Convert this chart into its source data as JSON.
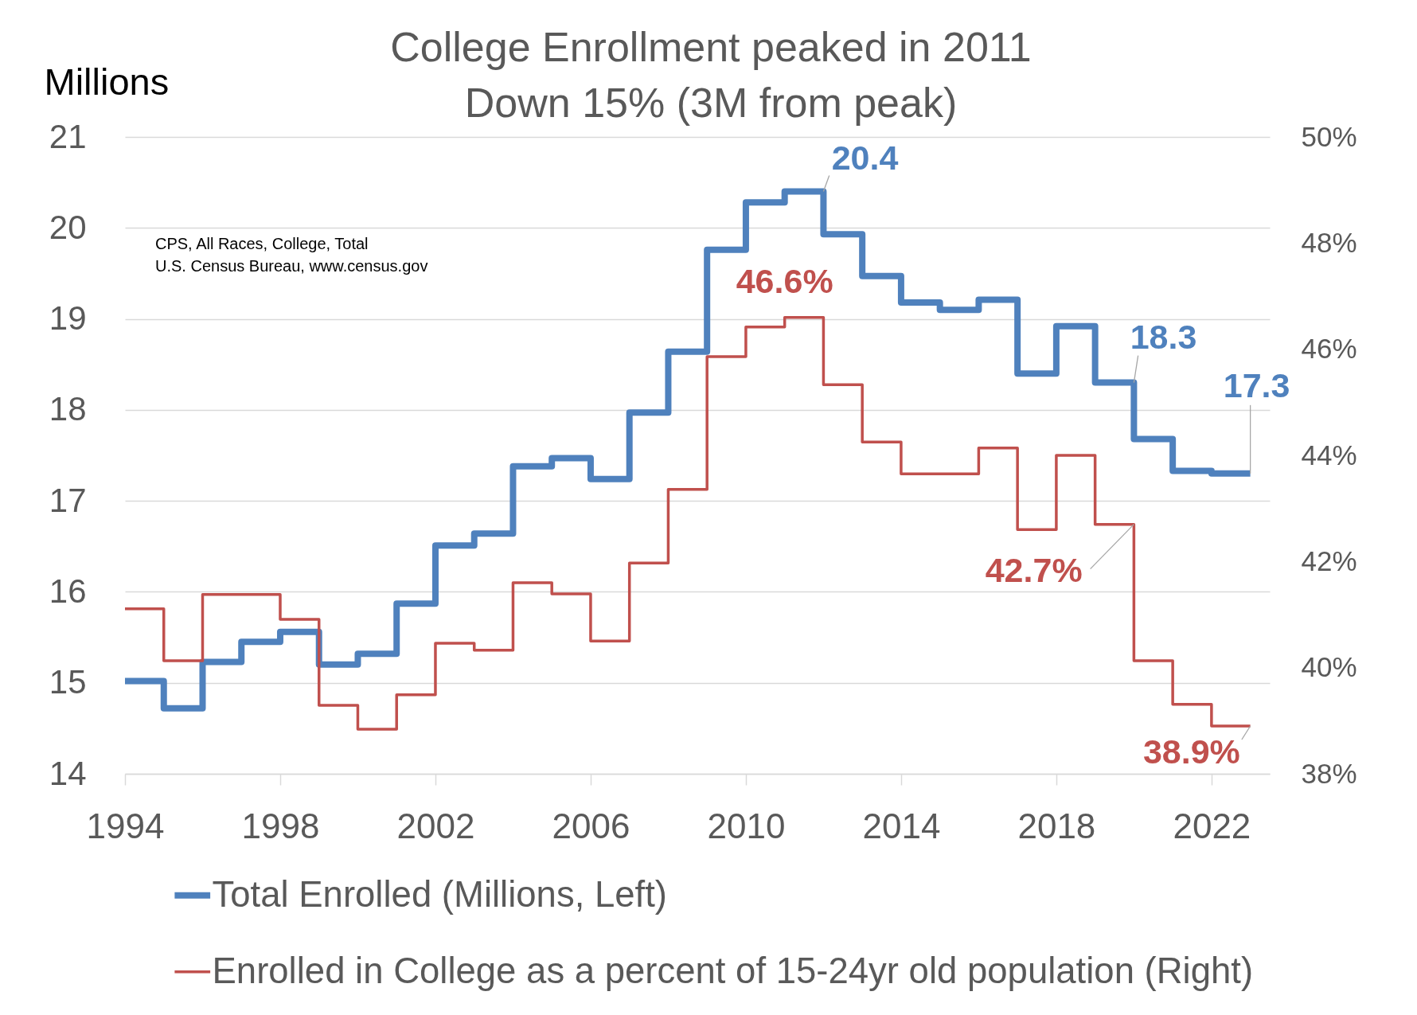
{
  "chart_data": {
    "type": "step",
    "title": "College Enrollment peaked in 2011",
    "subtitle": "Down 15% (3M from peak)",
    "ylabel": "Millions",
    "x": [
      1994,
      1995,
      1996,
      1997,
      1998,
      1999,
      2000,
      2001,
      2002,
      2003,
      2004,
      2005,
      2006,
      2007,
      2008,
      2009,
      2010,
      2011,
      2012,
      2013,
      2014,
      2015,
      2016,
      2017,
      2018,
      2019,
      2020,
      2021,
      2022,
      2023
    ],
    "series": [
      {
        "name": "Total Enrolled (Millions, Left)",
        "color": "#4f81bd",
        "values": [
          15.02,
          14.72,
          15.23,
          15.45,
          15.56,
          15.2,
          15.32,
          15.87,
          16.51,
          16.64,
          17.38,
          17.47,
          17.24,
          17.97,
          18.64,
          19.76,
          20.28,
          20.4,
          19.93,
          19.47,
          19.18,
          19.1,
          19.21,
          18.4,
          18.92,
          18.3,
          17.68,
          17.33,
          17.3,
          17.3
        ],
        "value_labels": [
          null,
          null,
          null,
          null,
          null,
          null,
          null,
          null,
          null,
          null,
          null,
          null,
          null,
          null,
          null,
          null,
          null,
          "20.4",
          null,
          null,
          null,
          null,
          null,
          null,
          null,
          "18.3",
          null,
          null,
          null,
          "17.3"
        ]
      },
      {
        "name": "Enrolled in College as a percent of 15-24yr old population (Right)",
        "color": "#c0504d",
        "axis": "y2",
        "values": [
          41.11,
          40.13,
          41.38,
          41.38,
          40.91,
          39.29,
          38.84,
          39.49,
          40.46,
          40.33,
          41.6,
          41.39,
          40.5,
          41.97,
          43.36,
          45.86,
          46.42,
          46.6,
          45.33,
          44.25,
          43.65,
          43.65,
          44.14,
          42.6,
          44.0,
          42.7,
          40.13,
          39.31,
          38.9,
          38.9
        ],
        "value_labels": [
          null,
          null,
          null,
          null,
          null,
          null,
          null,
          null,
          null,
          null,
          null,
          null,
          null,
          null,
          null,
          null,
          null,
          "46.6%",
          null,
          null,
          null,
          null,
          null,
          null,
          null,
          "42.7%",
          null,
          null,
          "38.9%",
          null
        ]
      }
    ],
    "xlim": [
      1994,
      2023.5
    ],
    "xticks": [
      1994,
      1998,
      2002,
      2006,
      2010,
      2014,
      2018,
      2022
    ],
    "ylim": [
      14,
      21
    ],
    "yticks": [
      14,
      15,
      16,
      17,
      18,
      19,
      20,
      21
    ],
    "y2lim": [
      38,
      50
    ],
    "y2ticks": [
      {
        "value": 38,
        "label": "38%"
      },
      {
        "value": 40,
        "label": "40%"
      },
      {
        "value": 42,
        "label": "42%"
      },
      {
        "value": 44,
        "label": "44%"
      },
      {
        "value": 46,
        "label": "46%"
      },
      {
        "value": 48,
        "label": "48%"
      },
      {
        "value": 50,
        "label": "50%"
      }
    ],
    "grid": "y",
    "legend": "bottom",
    "annotations": [
      "CPS, All Races, College, Total",
      "U.S. Census Bureau, www.census.gov"
    ]
  }
}
